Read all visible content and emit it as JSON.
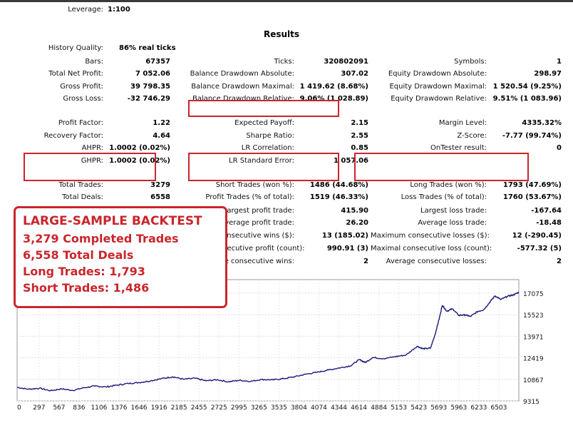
{
  "leverage": {
    "label": "Leverage:",
    "value": "1:100"
  },
  "results_title": "Results",
  "history_quality": {
    "label": "History Quality:",
    "value": "86% real ticks"
  },
  "rows": [
    {
      "top": 81,
      "cells": [
        {
          "label": "Bars:",
          "value": "67357"
        },
        {
          "label": "Ticks:",
          "value": "320802091"
        },
        {
          "label": "Symbols:",
          "value": "1"
        }
      ]
    },
    {
      "top": 98,
      "cells": [
        {
          "label": "Total Net Profit:",
          "value": "7 052.06"
        },
        {
          "label": "Balance Drawdown Absolute:",
          "value": "307.02"
        },
        {
          "label": "Equity Drawdown Absolute:",
          "value": "298.97"
        }
      ]
    },
    {
      "top": 116,
      "cells": [
        {
          "label": "Gross Profit:",
          "value": "39 798.35"
        },
        {
          "label": "Balance Drawdown Maximal:",
          "value": "1 419.62 (8.68%)"
        },
        {
          "label": "Equity Drawdown Maximal:",
          "value": "1 520.54 (9.25%)"
        }
      ]
    },
    {
      "top": 133,
      "cells": [
        {
          "label": "Gross Loss:",
          "value": "-32 746.29"
        },
        {
          "label": "Balance Drawdown Relative:",
          "value": "9.06% (1 028.89)"
        },
        {
          "label": "Equity Drawdown Relative:",
          "value": "9.51% (1 083.96)"
        }
      ]
    },
    {
      "top": 167,
      "cells": [
        {
          "label": "Profit Factor:",
          "value": "1.22"
        },
        {
          "label": "Expected Payoff:",
          "value": "2.15"
        },
        {
          "label": "Margin Level:",
          "value": "4335.32%"
        }
      ]
    },
    {
      "top": 185,
      "cells": [
        {
          "label": "Recovery Factor:",
          "value": "4.64"
        },
        {
          "label": "Sharpe Ratio:",
          "value": "2.55"
        },
        {
          "label": "Z-Score:",
          "value": "-7.77 (99.74%)"
        }
      ]
    },
    {
      "top": 202,
      "cells": [
        {
          "label": "AHPR:",
          "value": "1.0002 (0.02%)"
        },
        {
          "label": "LR Correlation:",
          "value": "0.85"
        },
        {
          "label": "OnTester result:",
          "value": "0"
        }
      ]
    },
    {
      "top": 220,
      "cells": [
        {
          "label": "GHPR:",
          "value": "1.0002 (0.02%)"
        },
        {
          "label": "LR Standard Error:",
          "value": "1 057.06"
        },
        {
          "label": "",
          "value": ""
        }
      ]
    },
    {
      "top": 254,
      "cells": [
        {
          "label": "Total Trades:",
          "value": "3279"
        },
        {
          "label": "Short Trades (won %):",
          "value": "1486 (44.68%)"
        },
        {
          "label": "Long Trades (won %):",
          "value": "1793 (47.69%)"
        }
      ]
    },
    {
      "top": 271,
      "cells": [
        {
          "label": "Total Deals:",
          "value": "6558"
        },
        {
          "label": "Profit Trades (% of total):",
          "value": "1519 (46.33%)"
        },
        {
          "label": "Loss Trades (% of total):",
          "value": "1760 (53.67%)"
        }
      ]
    },
    {
      "top": 290,
      "cells": [
        {
          "label": "",
          "value": ""
        },
        {
          "label": "Largest profit trade:",
          "value": "415.90"
        },
        {
          "label": "Largest loss trade:",
          "value": "-167.64"
        }
      ]
    },
    {
      "top": 307,
      "cells": [
        {
          "label": "",
          "value": ""
        },
        {
          "label": "Average profit trade:",
          "value": "26.20"
        },
        {
          "label": "Average loss trade:",
          "value": "-18.48"
        }
      ]
    },
    {
      "top": 325,
      "cells": [
        {
          "label": "",
          "value": ""
        },
        {
          "label": "Maximum consecutive wins ($):",
          "value": "13 (185.02)"
        },
        {
          "label": "Maximum consecutive losses ($):",
          "value": "12 (-290.45)"
        }
      ]
    },
    {
      "top": 343,
      "cells": [
        {
          "label": "",
          "value": ""
        },
        {
          "label": "Maximal consecutive profit (count):",
          "value": "990.91 (3)"
        },
        {
          "label": "Maximal consecutive loss (count):",
          "value": "-577.32 (5)"
        }
      ]
    },
    {
      "top": 361,
      "cells": [
        {
          "label": "",
          "value": ""
        },
        {
          "label": "Average consecutive wins:",
          "value": "2"
        },
        {
          "label": "Average consecutive losses:",
          "value": "2"
        }
      ]
    }
  ],
  "callout": {
    "heading": "LARGE-SAMPLE BACKTEST",
    "lines": [
      "3,279 Completed Trades",
      "6,558 Total Deals",
      "Long Trades: 1,793",
      "Short Trades: 1,486"
    ]
  },
  "colors": {
    "highlight": "#c8262c",
    "equity_line": "#1a1a7a"
  },
  "chart_data": {
    "type": "line",
    "title": "",
    "xlabel": "",
    "ylabel": "",
    "x_ticks": [
      "0",
      "297",
      "567",
      "836",
      "1106",
      "1376",
      "1646",
      "1916",
      "2185",
      "2455",
      "2725",
      "2995",
      "3265",
      "3535",
      "3804",
      "4074",
      "4344",
      "4614",
      "4884",
      "5153",
      "5423",
      "5693",
      "5963",
      "6233",
      "6503"
    ],
    "y_ticks": [
      "17075",
      "15523",
      "13971",
      "12419",
      "10867",
      "9315"
    ],
    "ylim": [
      9315,
      17075
    ],
    "xlim": [
      0,
      6773
    ],
    "grid": true,
    "series": [
      {
        "values": [
          [
            0,
            10290
          ],
          [
            150,
            10160
          ],
          [
            300,
            10230
          ],
          [
            450,
            10050
          ],
          [
            600,
            10180
          ],
          [
            750,
            10070
          ],
          [
            900,
            10260
          ],
          [
            1050,
            10380
          ],
          [
            1200,
            10320
          ],
          [
            1350,
            10450
          ],
          [
            1500,
            10570
          ],
          [
            1650,
            10640
          ],
          [
            1800,
            10760
          ],
          [
            1950,
            10920
          ],
          [
            2100,
            11050
          ],
          [
            2250,
            10870
          ],
          [
            2400,
            10950
          ],
          [
            2550,
            10760
          ],
          [
            2700,
            10840
          ],
          [
            2850,
            10690
          ],
          [
            3000,
            10800
          ],
          [
            3150,
            10720
          ],
          [
            3300,
            10860
          ],
          [
            3450,
            10830
          ],
          [
            3600,
            10920
          ],
          [
            3750,
            11060
          ],
          [
            3900,
            11240
          ],
          [
            4050,
            11380
          ],
          [
            4200,
            11540
          ],
          [
            4350,
            11690
          ],
          [
            4500,
            11840
          ],
          [
            4620,
            12290
          ],
          [
            4700,
            12080
          ],
          [
            4800,
            12440
          ],
          [
            4950,
            12360
          ],
          [
            5100,
            12500
          ],
          [
            5250,
            12620
          ],
          [
            5400,
            13250
          ],
          [
            5480,
            13070
          ],
          [
            5580,
            13110
          ],
          [
            5640,
            14060
          ],
          [
            5700,
            15280
          ],
          [
            5740,
            16210
          ],
          [
            5800,
            15780
          ],
          [
            5880,
            15950
          ],
          [
            5960,
            15480
          ],
          [
            6050,
            15510
          ],
          [
            6120,
            15400
          ],
          [
            6220,
            15760
          ],
          [
            6300,
            15890
          ],
          [
            6380,
            16420
          ],
          [
            6450,
            16880
          ],
          [
            6530,
            16620
          ],
          [
            6620,
            16850
          ],
          [
            6700,
            16950
          ],
          [
            6773,
            17140
          ]
        ]
      }
    ]
  }
}
